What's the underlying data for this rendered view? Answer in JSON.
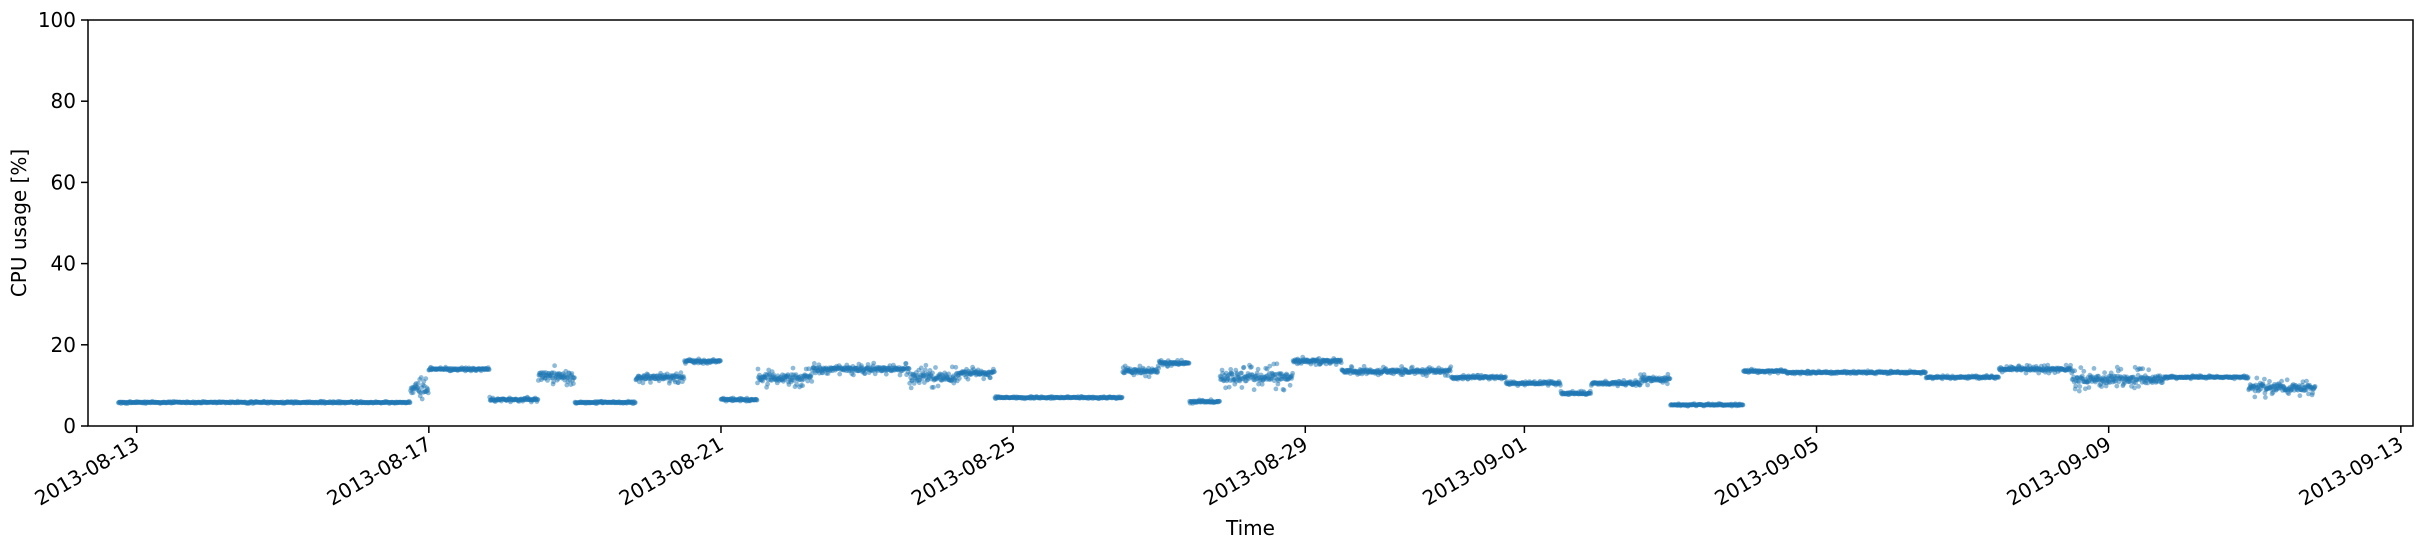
{
  "chart_data": {
    "type": "scatter",
    "xlabel": "Time",
    "ylabel": "CPU usage [%]",
    "ylim": [
      0,
      100
    ],
    "xlim": [
      "2013-08-12T08:00",
      "2013-09-13T04:00"
    ],
    "grid": false,
    "y_ticks": [
      "0",
      "20",
      "40",
      "60",
      "80",
      "100"
    ],
    "x_ticks": [
      "2013-08-13",
      "2013-08-17",
      "2013-08-21",
      "2013-08-25",
      "2013-08-29",
      "2013-09-01",
      "2013-09-05",
      "2013-09-09",
      "2013-09-13"
    ],
    "point_color": "#1f77b4",
    "segments": [
      {
        "start": "2013-08-12T18:00",
        "end": "2013-08-16T18:00",
        "level": 5.8,
        "spread": 0.3
      },
      {
        "start": "2013-08-16T18:00",
        "end": "2013-08-17T00:00",
        "level": 9.0,
        "spread": 3.0
      },
      {
        "start": "2013-08-17T00:00",
        "end": "2013-08-17T20:00",
        "level": 14.0,
        "spread": 0.6
      },
      {
        "start": "2013-08-17T20:00",
        "end": "2013-08-18T12:00",
        "level": 6.5,
        "spread": 0.6
      },
      {
        "start": "2013-08-18T12:00",
        "end": "2013-08-19T00:00",
        "level": 12.5,
        "spread": 2.5
      },
      {
        "start": "2013-08-19T00:00",
        "end": "2013-08-19T20:00",
        "level": 5.8,
        "spread": 0.3
      },
      {
        "start": "2013-08-19T20:00",
        "end": "2013-08-20T12:00",
        "level": 12.0,
        "spread": 1.5
      },
      {
        "start": "2013-08-20T12:00",
        "end": "2013-08-21T00:00",
        "level": 16.0,
        "spread": 0.6
      },
      {
        "start": "2013-08-21T00:00",
        "end": "2013-08-21T12:00",
        "level": 6.5,
        "spread": 0.4
      },
      {
        "start": "2013-08-21T12:00",
        "end": "2013-08-22T06:00",
        "level": 12.0,
        "spread": 2.5
      },
      {
        "start": "2013-08-22T06:00",
        "end": "2013-08-23T14:00",
        "level": 14.0,
        "spread": 1.5
      },
      {
        "start": "2013-08-23T14:00",
        "end": "2013-08-24T06:00",
        "level": 12.0,
        "spread": 3.0
      },
      {
        "start": "2013-08-24T06:00",
        "end": "2013-08-24T18:00",
        "level": 13.0,
        "spread": 1.5
      },
      {
        "start": "2013-08-24T18:00",
        "end": "2013-08-26T12:00",
        "level": 7.0,
        "spread": 0.3
      },
      {
        "start": "2013-08-26T12:00",
        "end": "2013-08-27T00:00",
        "level": 13.5,
        "spread": 1.5
      },
      {
        "start": "2013-08-27T00:00",
        "end": "2013-08-27T10:00",
        "level": 15.5,
        "spread": 0.8
      },
      {
        "start": "2013-08-27T10:00",
        "end": "2013-08-27T20:00",
        "level": 6.0,
        "spread": 0.5
      },
      {
        "start": "2013-08-27T20:00",
        "end": "2013-08-28T20:00",
        "level": 12.0,
        "spread": 3.5
      },
      {
        "start": "2013-08-28T20:00",
        "end": "2013-08-29T12:00",
        "level": 16.0,
        "spread": 1.0
      },
      {
        "start": "2013-08-29T12:00",
        "end": "2013-08-31T00:00",
        "level": 13.5,
        "spread": 1.2
      },
      {
        "start": "2013-08-31T00:00",
        "end": "2013-08-31T18:00",
        "level": 12.0,
        "spread": 0.5
      },
      {
        "start": "2013-08-31T18:00",
        "end": "2013-09-01T12:00",
        "level": 10.5,
        "spread": 0.6
      },
      {
        "start": "2013-09-01T12:00",
        "end": "2013-09-01T22:00",
        "level": 8.0,
        "spread": 0.6
      },
      {
        "start": "2013-09-01T22:00",
        "end": "2013-09-02T14:00",
        "level": 10.5,
        "spread": 0.8
      },
      {
        "start": "2013-09-02T14:00",
        "end": "2013-09-03T00:00",
        "level": 11.5,
        "spread": 1.5
      },
      {
        "start": "2013-09-03T00:00",
        "end": "2013-09-04T00:00",
        "level": 5.2,
        "spread": 0.3
      },
      {
        "start": "2013-09-04T00:00",
        "end": "2013-09-04T14:00",
        "level": 13.5,
        "spread": 0.5
      },
      {
        "start": "2013-09-04T14:00",
        "end": "2013-09-06T12:00",
        "level": 13.2,
        "spread": 0.4
      },
      {
        "start": "2013-09-06T12:00",
        "end": "2013-09-07T12:00",
        "level": 12.0,
        "spread": 0.4
      },
      {
        "start": "2013-09-07T12:00",
        "end": "2013-09-08T12:00",
        "level": 14.0,
        "spread": 1.0
      },
      {
        "start": "2013-09-08T12:00",
        "end": "2013-09-09T18:00",
        "level": 11.5,
        "spread": 3.0
      },
      {
        "start": "2013-09-09T18:00",
        "end": "2013-09-10T22:00",
        "level": 12.0,
        "spread": 0.4
      },
      {
        "start": "2013-09-10T22:00",
        "end": "2013-09-11T20:00",
        "level": 9.5,
        "spread": 2.5
      }
    ]
  }
}
